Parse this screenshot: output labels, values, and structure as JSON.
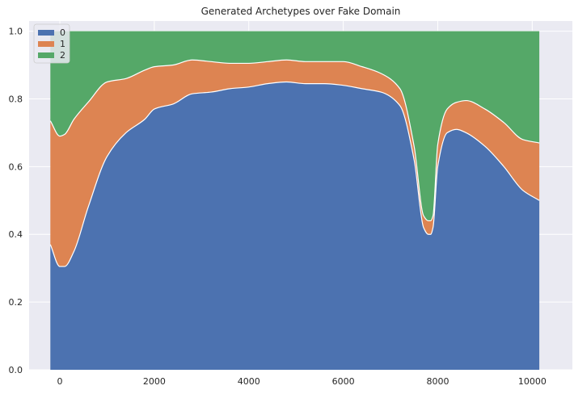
{
  "chart_data": {
    "type": "area",
    "stacked": true,
    "title": "Generated Archetypes over Fake Domain",
    "xlabel": "",
    "ylabel": "",
    "xlim": [
      -650,
      10850
    ],
    "ylim": [
      0,
      1.03
    ],
    "x_ticks": [
      0,
      2000,
      4000,
      6000,
      8000,
      10000
    ],
    "x_tick_labels": [
      "0",
      "2000",
      "4000",
      "6000",
      "8000",
      "10000"
    ],
    "y_ticks": [
      0.0,
      0.2,
      0.4,
      0.6,
      0.8,
      1.0
    ],
    "y_tick_labels": [
      "0.0",
      "0.2",
      "0.4",
      "0.6",
      "0.8",
      "1.0"
    ],
    "grid": true,
    "legend_position": "upper-left",
    "background_color": "#eaeaf2",
    "grid_color": "#ffffff",
    "x": [
      -200,
      0,
      100,
      300,
      600,
      1000,
      1400,
      1800,
      2000,
      2400,
      2800,
      3200,
      3600,
      4000,
      4400,
      4800,
      5200,
      5600,
      6000,
      6400,
      6800,
      7200,
      7500,
      7700,
      7800,
      7850,
      7900,
      8000,
      8200,
      8400,
      8600,
      9000,
      9400,
      9800,
      10150
    ],
    "series": [
      {
        "name": "0",
        "color": "#4c72b0",
        "values": [
          0.37,
          0.305,
          0.305,
          0.35,
          0.48,
          0.63,
          0.7,
          0.74,
          0.77,
          0.785,
          0.815,
          0.82,
          0.83,
          0.835,
          0.845,
          0.85,
          0.845,
          0.845,
          0.84,
          0.83,
          0.82,
          0.78,
          0.62,
          0.42,
          0.4,
          0.4,
          0.42,
          0.6,
          0.7,
          0.71,
          0.7,
          0.66,
          0.6,
          0.53,
          0.5
        ]
      },
      {
        "name": "1",
        "color": "#dd8452",
        "values": [
          0.365,
          0.385,
          0.39,
          0.39,
          0.31,
          0.22,
          0.16,
          0.145,
          0.125,
          0.115,
          0.1,
          0.09,
          0.075,
          0.07,
          0.065,
          0.065,
          0.065,
          0.065,
          0.07,
          0.065,
          0.055,
          0.05,
          0.04,
          0.035,
          0.04,
          0.04,
          0.035,
          0.065,
          0.07,
          0.08,
          0.095,
          0.11,
          0.13,
          0.15,
          0.17
        ]
      },
      {
        "name": "2",
        "color": "#55a868",
        "values": [
          0.265,
          0.31,
          0.305,
          0.26,
          0.21,
          0.15,
          0.14,
          0.115,
          0.105,
          0.1,
          0.085,
          0.09,
          0.095,
          0.095,
          0.09,
          0.085,
          0.09,
          0.09,
          0.09,
          0.105,
          0.125,
          0.17,
          0.34,
          0.545,
          0.56,
          0.56,
          0.545,
          0.335,
          0.23,
          0.21,
          0.205,
          0.23,
          0.27,
          0.32,
          0.33
        ]
      }
    ]
  }
}
